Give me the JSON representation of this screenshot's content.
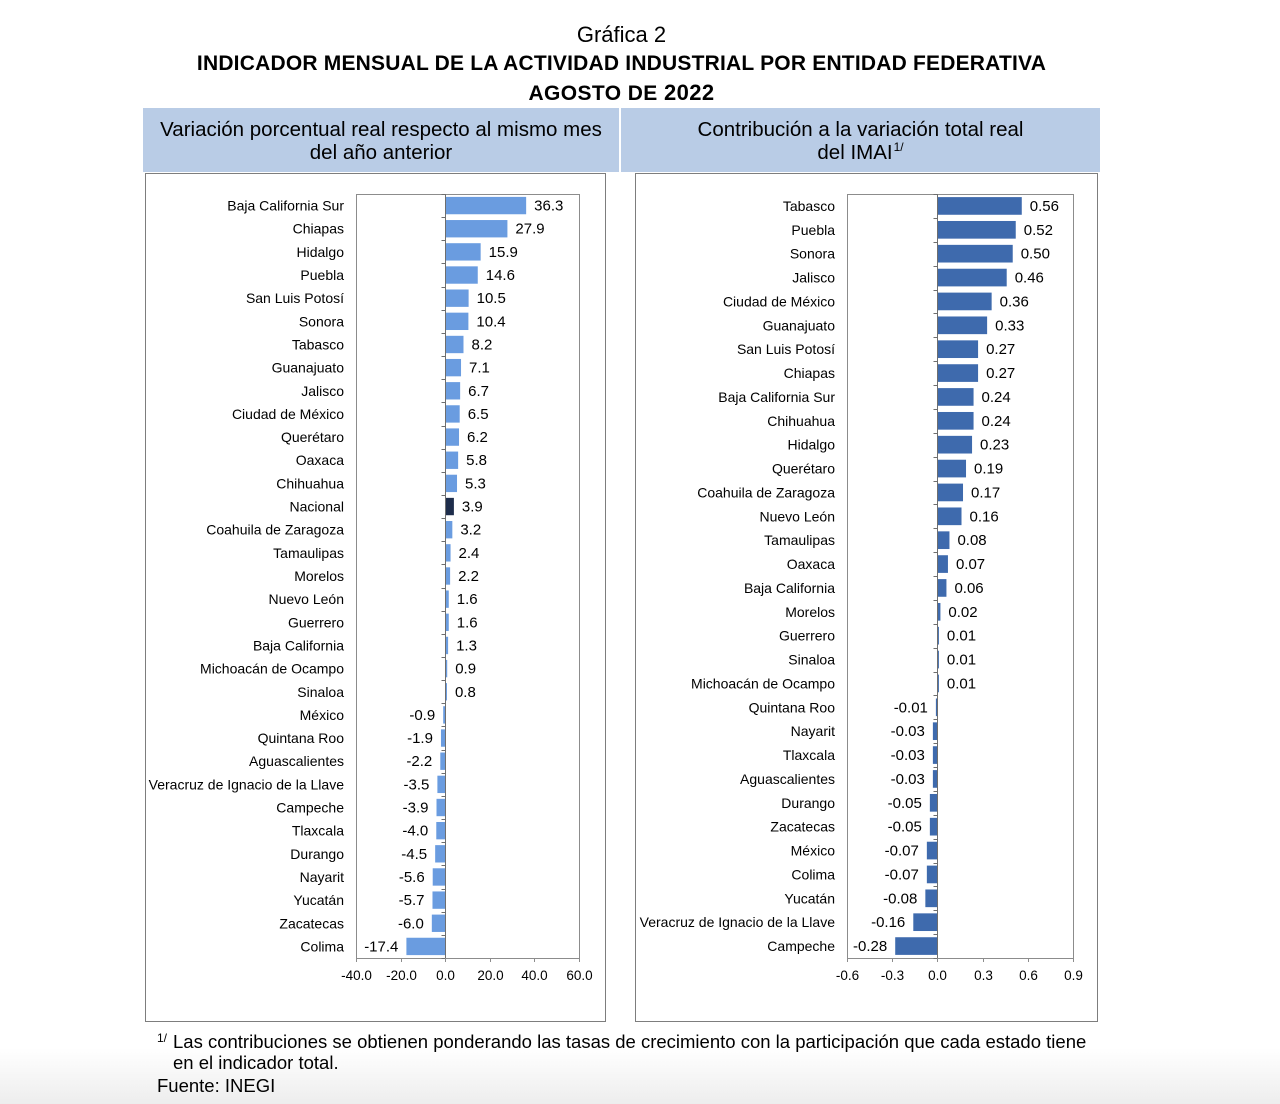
{
  "document": {
    "figure_label": "Gráfica 2",
    "title": "INDICADOR MENSUAL DE LA ACTIVIDAD INDUSTRIAL POR ENTIDAD FEDERATIVA",
    "period_prefix": "AGOSTO DE",
    "period_year": "2022"
  },
  "colors": {
    "header_band": "#b9cce6"
  },
  "chart_data": [
    {
      "type": "bar",
      "orientation": "horizontal",
      "title": "Variación porcentual real respecto al mismo mes del año anterior",
      "categories": [
        "Baja California Sur",
        "Chiapas",
        "Hidalgo",
        "Puebla",
        "San Luis Potosí",
        "Sonora",
        "Tabasco",
        "Guanajuato",
        "Jalisco",
        "Ciudad de México",
        "Querétaro",
        "Oaxaca",
        "Chihuahua",
        "Nacional",
        "Coahuila de Zaragoza",
        "Tamaulipas",
        "Morelos",
        "Nuevo León",
        "Guerrero",
        "Baja California",
        "Michoacán de Ocampo",
        "Sinaloa",
        "México",
        "Quintana Roo",
        "Aguascalientes",
        "Veracruz de Ignacio de la Llave",
        "Campeche",
        "Tlaxcala",
        "Durango",
        "Nayarit",
        "Yucatán",
        "Zacatecas",
        "Colima"
      ],
      "values": [
        36.3,
        27.9,
        15.9,
        14.6,
        10.5,
        10.4,
        8.2,
        7.1,
        6.7,
        6.5,
        6.2,
        5.8,
        5.3,
        3.9,
        3.2,
        2.4,
        2.2,
        1.6,
        1.6,
        1.3,
        0.9,
        0.8,
        -0.9,
        -1.9,
        -2.2,
        -3.5,
        -3.9,
        -4.0,
        -4.5,
        -5.6,
        -5.7,
        -6.0,
        -17.4
      ],
      "bar_colors": [
        "#6a9ce0",
        "#6a9ce0",
        "#6a9ce0",
        "#6a9ce0",
        "#6a9ce0",
        "#6a9ce0",
        "#6a9ce0",
        "#6a9ce0",
        "#6a9ce0",
        "#6a9ce0",
        "#6a9ce0",
        "#6a9ce0",
        "#6a9ce0",
        "#1e2d4b",
        "#6a9ce0",
        "#6a9ce0",
        "#6a9ce0",
        "#6a9ce0",
        "#6a9ce0",
        "#6a9ce0",
        "#6a9ce0",
        "#6a9ce0",
        "#6a9ce0",
        "#6a9ce0",
        "#6a9ce0",
        "#6a9ce0",
        "#6a9ce0",
        "#6a9ce0",
        "#6a9ce0",
        "#6a9ce0",
        "#6a9ce0",
        "#6a9ce0",
        "#6a9ce0"
      ],
      "xlim": [
        -40,
        60
      ],
      "xticks": [
        -40,
        -20,
        0,
        20,
        40,
        60
      ],
      "grid": false,
      "data_labels": true
    },
    {
      "type": "bar",
      "orientation": "horizontal",
      "title": "Contribución a la variación total real del IMAI",
      "title_note": "1/",
      "categories": [
        "Tabasco",
        "Puebla",
        "Sonora",
        "Jalisco",
        "Ciudad de México",
        "Guanajuato",
        "San Luis Potosí",
        "Chiapas",
        "Baja California Sur",
        "Chihuahua",
        "Hidalgo",
        "Querétaro",
        "Coahuila de Zaragoza",
        "Nuevo León",
        "Tamaulipas",
        "Oaxaca",
        "Baja California",
        "Morelos",
        "Guerrero",
        "Sinaloa",
        "Michoacán de Ocampo",
        "Quintana Roo",
        "Nayarit",
        "Tlaxcala",
        "Aguascalientes",
        "Durango",
        "Zacatecas",
        "México",
        "Colima",
        "Yucatán",
        "Veracruz de Ignacio de la Llave",
        "Campeche"
      ],
      "values": [
        0.56,
        0.52,
        0.5,
        0.46,
        0.36,
        0.33,
        0.27,
        0.27,
        0.24,
        0.24,
        0.23,
        0.19,
        0.17,
        0.16,
        0.08,
        0.07,
        0.06,
        0.02,
        0.01,
        0.01,
        0.01,
        -0.01,
        -0.03,
        -0.03,
        -0.03,
        -0.05,
        -0.05,
        -0.07,
        -0.07,
        -0.08,
        -0.16,
        -0.28
      ],
      "bar_color": "#3e6aad",
      "xlim": [
        -0.6,
        0.9
      ],
      "xticks": [
        -0.6,
        -0.3,
        0,
        0.3,
        0.6,
        0.9
      ],
      "grid": false,
      "data_labels": true
    }
  ],
  "footnote": {
    "marker": "1/",
    "lines": [
      "Las contribuciones se obtienen ponderando las tasas de crecimiento con la participación que cada estado tiene",
      "en el indicador total."
    ],
    "source": "Fuente: INEGI"
  }
}
